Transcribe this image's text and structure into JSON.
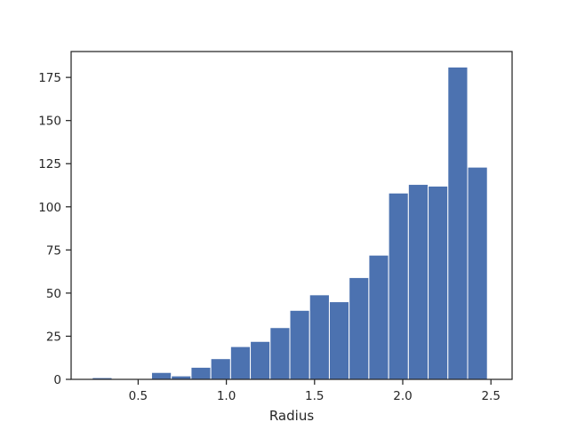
{
  "chart_data": {
    "type": "bar",
    "xlabel": "Radius",
    "ylabel": "",
    "xlim": [
      0.12,
      2.62
    ],
    "ylim": [
      0,
      190
    ],
    "x_ticks": [
      0.5,
      1.0,
      1.5,
      2.0,
      2.5
    ],
    "x_tick_labels": [
      "0.5",
      "1.0",
      "1.5",
      "2.0",
      "2.5"
    ],
    "y_ticks": [
      0,
      25,
      50,
      75,
      100,
      125,
      150,
      175
    ],
    "y_tick_labels": [
      "0",
      "25",
      "50",
      "75",
      "100",
      "125",
      "150",
      "175"
    ],
    "bin_edges": [
      0.24,
      0.352,
      0.464,
      0.576,
      0.688,
      0.8,
      0.912,
      1.024,
      1.136,
      1.248,
      1.36,
      1.472,
      1.584,
      1.696,
      1.808,
      1.92,
      2.032,
      2.144,
      2.256,
      2.368,
      2.48
    ],
    "counts": [
      1,
      0,
      0,
      4,
      2,
      7,
      12,
      19,
      22,
      30,
      40,
      49,
      45,
      59,
      72,
      108,
      113,
      112,
      181,
      123
    ],
    "grid": false,
    "colors": {
      "bar": "#4c72b0",
      "bar_edge": "#ffffff",
      "axis": "#262626"
    }
  }
}
